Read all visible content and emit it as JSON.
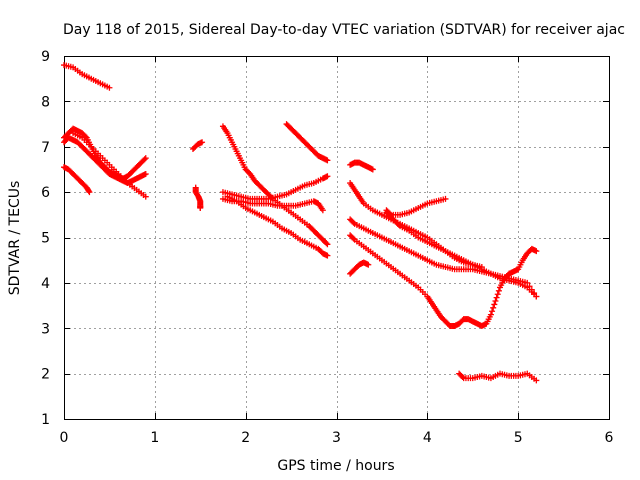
{
  "chart_data": {
    "type": "scatter",
    "title": "Day 118 of 2015, Sidereal Day-to-day VTEC variation (SDTVAR) for receiver ajac",
    "xlabel": "GPS time / hours",
    "ylabel": "SDTVAR / TECUs",
    "xlim": [
      0,
      6
    ],
    "ylim": [
      1,
      9
    ],
    "xticks": [
      "0",
      "1",
      "2",
      "3",
      "4",
      "5",
      "6"
    ],
    "yticks": [
      "1",
      "2",
      "3",
      "4",
      "5",
      "6",
      "7",
      "8",
      "9"
    ],
    "grid": true,
    "marker": "plus",
    "color": "#ff0000",
    "series": [
      {
        "name": "arc-1",
        "x": [
          0.0,
          0.1,
          0.2,
          0.3,
          0.4,
          0.5
        ],
        "y": [
          8.8,
          8.75,
          8.6,
          8.5,
          8.4,
          8.3
        ]
      },
      {
        "name": "arc-2",
        "x": [
          0.0,
          0.05,
          0.1,
          0.15,
          0.2,
          0.25,
          0.3,
          0.35,
          0.4,
          0.45,
          0.5,
          0.55,
          0.6,
          0.65,
          0.7,
          0.75,
          0.8,
          0.85,
          0.9
        ],
        "y": [
          7.2,
          7.3,
          7.4,
          7.35,
          7.3,
          7.2,
          7.0,
          6.8,
          6.65,
          6.55,
          6.45,
          6.4,
          6.35,
          6.3,
          6.35,
          6.45,
          6.55,
          6.65,
          6.75
        ]
      },
      {
        "name": "arc-3",
        "x": [
          0.0,
          0.05,
          0.1,
          0.15,
          0.2,
          0.25,
          0.3,
          0.35,
          0.4,
          0.45,
          0.5,
          0.55,
          0.6,
          0.65,
          0.7,
          0.75,
          0.8,
          0.85,
          0.9
        ],
        "y": [
          7.1,
          7.2,
          7.15,
          7.1,
          7.0,
          6.9,
          6.8,
          6.7,
          6.6,
          6.5,
          6.4,
          6.35,
          6.3,
          6.25,
          6.2,
          6.25,
          6.3,
          6.35,
          6.4
        ]
      },
      {
        "name": "arc-4",
        "x": [
          0.1,
          0.2,
          0.3,
          0.4,
          0.5,
          0.6,
          0.7,
          0.8,
          0.9
        ],
        "y": [
          7.3,
          7.2,
          7.0,
          6.8,
          6.6,
          6.4,
          6.2,
          6.05,
          5.9
        ]
      },
      {
        "name": "arc-5",
        "x": [
          0.0,
          0.05,
          0.1,
          0.15,
          0.2,
          0.25,
          0.28
        ],
        "y": [
          6.55,
          6.5,
          6.4,
          6.3,
          6.2,
          6.1,
          6.0
        ]
      },
      {
        "name": "arc-6",
        "x": [
          1.42,
          1.47,
          1.52
        ],
        "y": [
          6.95,
          7.05,
          7.1
        ]
      },
      {
        "name": "arc-7",
        "x": [
          1.45,
          1.45,
          1.48,
          1.5,
          1.5,
          1.5
        ],
        "y": [
          6.1,
          6.0,
          5.9,
          5.8,
          5.7,
          5.65
        ]
      },
      {
        "name": "arc-8",
        "x": [
          1.75,
          1.8,
          1.85,
          1.9,
          1.95,
          2.0,
          2.05,
          2.1,
          2.15,
          2.2,
          2.25,
          2.3,
          2.4,
          2.5,
          2.6,
          2.7,
          2.75,
          2.8,
          2.85,
          2.9
        ],
        "y": [
          7.45,
          7.3,
          7.1,
          6.9,
          6.7,
          6.5,
          6.4,
          6.25,
          6.15,
          6.05,
          5.95,
          5.85,
          5.7,
          5.55,
          5.4,
          5.25,
          5.15,
          5.05,
          4.95,
          4.85
        ]
      },
      {
        "name": "arc-9",
        "x": [
          1.75,
          1.85,
          1.95,
          2.05,
          2.15,
          2.25,
          2.35,
          2.45,
          2.55,
          2.65,
          2.75,
          2.85,
          2.9
        ],
        "y": [
          6.0,
          5.95,
          5.9,
          5.85,
          5.85,
          5.85,
          5.9,
          5.95,
          6.05,
          6.15,
          6.2,
          6.3,
          6.35
        ]
      },
      {
        "name": "arc-10",
        "x": [
          1.75,
          1.85,
          1.95,
          2.05,
          2.15,
          2.25,
          2.35,
          2.45,
          2.55,
          2.65,
          2.75,
          2.8,
          2.85
        ],
        "y": [
          5.85,
          5.8,
          5.8,
          5.75,
          5.75,
          5.75,
          5.7,
          5.7,
          5.7,
          5.75,
          5.8,
          5.75,
          5.6
        ]
      },
      {
        "name": "arc-11",
        "x": [
          1.8,
          1.9,
          2.0,
          2.1,
          2.2,
          2.3,
          2.4,
          2.5,
          2.6,
          2.7,
          2.8,
          2.85,
          2.9
        ],
        "y": [
          5.9,
          5.8,
          5.65,
          5.55,
          5.45,
          5.35,
          5.2,
          5.1,
          4.95,
          4.85,
          4.75,
          4.65,
          4.6
        ]
      },
      {
        "name": "arc-12",
        "x": [
          2.45,
          2.5,
          2.55,
          2.6,
          2.65,
          2.7,
          2.75,
          2.8,
          2.85,
          2.9
        ],
        "y": [
          7.5,
          7.4,
          7.3,
          7.2,
          7.1,
          7.0,
          6.9,
          6.8,
          6.75,
          6.7
        ]
      },
      {
        "name": "arc-13",
        "x": [
          3.15,
          3.2,
          3.25,
          3.3,
          3.35,
          3.4
        ],
        "y": [
          6.6,
          6.65,
          6.65,
          6.6,
          6.55,
          6.5
        ]
      },
      {
        "name": "arc-14",
        "x": [
          3.15,
          3.2,
          3.25,
          3.3,
          3.4,
          3.5,
          3.6,
          3.7,
          3.8,
          3.9,
          4.0,
          4.1,
          4.2,
          4.3,
          4.4,
          4.5,
          4.6,
          4.7,
          4.8,
          4.9,
          5.0,
          5.1,
          5.2
        ],
        "y": [
          6.2,
          6.05,
          5.9,
          5.75,
          5.6,
          5.5,
          5.4,
          5.3,
          5.2,
          5.1,
          5.0,
          4.85,
          4.7,
          4.6,
          4.5,
          4.4,
          4.3,
          4.2,
          4.1,
          4.05,
          4.0,
          3.9,
          3.7
        ]
      },
      {
        "name": "arc-15",
        "x": [
          3.15,
          3.2,
          3.3,
          3.4,
          3.5,
          3.6,
          3.7,
          3.8,
          3.9,
          4.0,
          4.1,
          4.2,
          4.3,
          4.4,
          4.5,
          4.6,
          4.7,
          4.8,
          4.9,
          5.0,
          5.1,
          5.2
        ],
        "y": [
          5.4,
          5.3,
          5.2,
          5.1,
          5.0,
          4.9,
          4.8,
          4.7,
          4.6,
          4.5,
          4.4,
          4.35,
          4.3,
          4.3,
          4.3,
          4.25,
          4.2,
          4.15,
          4.1,
          4.05,
          4.0,
          3.7
        ]
      },
      {
        "name": "arc-16",
        "x": [
          3.15,
          3.2,
          3.3,
          3.4,
          3.5,
          3.6,
          3.7,
          3.8,
          3.9,
          4.0,
          4.05,
          4.1,
          4.15,
          4.2,
          4.25,
          4.3,
          4.35,
          4.4,
          4.45,
          4.5,
          4.55,
          4.6,
          4.65,
          4.7,
          4.75,
          4.8,
          4.85,
          4.9
        ],
        "y": [
          5.05,
          4.95,
          4.8,
          4.65,
          4.5,
          4.35,
          4.2,
          4.05,
          3.9,
          3.7,
          3.55,
          3.4,
          3.25,
          3.15,
          3.05,
          3.05,
          3.1,
          3.2,
          3.2,
          3.15,
          3.1,
          3.05,
          3.1,
          3.3,
          3.6,
          3.9,
          4.1,
          4.2
        ]
      },
      {
        "name": "arc-17",
        "x": [
          3.15,
          3.2,
          3.25,
          3.3,
          3.35
        ],
        "y": [
          4.2,
          4.3,
          4.4,
          4.45,
          4.4
        ]
      },
      {
        "name": "arc-18",
        "x": [
          3.55,
          3.6,
          3.7,
          3.8,
          3.9,
          4.0,
          4.1,
          4.2
        ],
        "y": [
          5.6,
          5.5,
          5.5,
          5.55,
          5.65,
          5.75,
          5.8,
          5.85
        ]
      },
      {
        "name": "arc-19",
        "x": [
          3.55,
          3.6,
          3.65,
          3.7,
          3.8,
          3.9,
          4.0,
          4.1,
          4.2,
          4.3,
          4.4,
          4.5,
          4.6
        ],
        "y": [
          5.55,
          5.45,
          5.35,
          5.25,
          5.15,
          5.0,
          4.9,
          4.8,
          4.7,
          4.55,
          4.45,
          4.4,
          4.35
        ]
      },
      {
        "name": "arc-20",
        "x": [
          4.35,
          4.4,
          4.5,
          4.6,
          4.7,
          4.8,
          4.9,
          5.0,
          5.1,
          5.2
        ],
        "y": [
          2.0,
          1.9,
          1.9,
          1.95,
          1.9,
          2.0,
          1.95,
          1.95,
          2.0,
          1.85
        ]
      },
      {
        "name": "arc-21",
        "x": [
          4.9,
          4.95,
          5.0,
          5.05,
          5.1,
          5.15,
          5.2
        ],
        "y": [
          4.2,
          4.25,
          4.3,
          4.5,
          4.65,
          4.75,
          4.7
        ]
      }
    ]
  }
}
